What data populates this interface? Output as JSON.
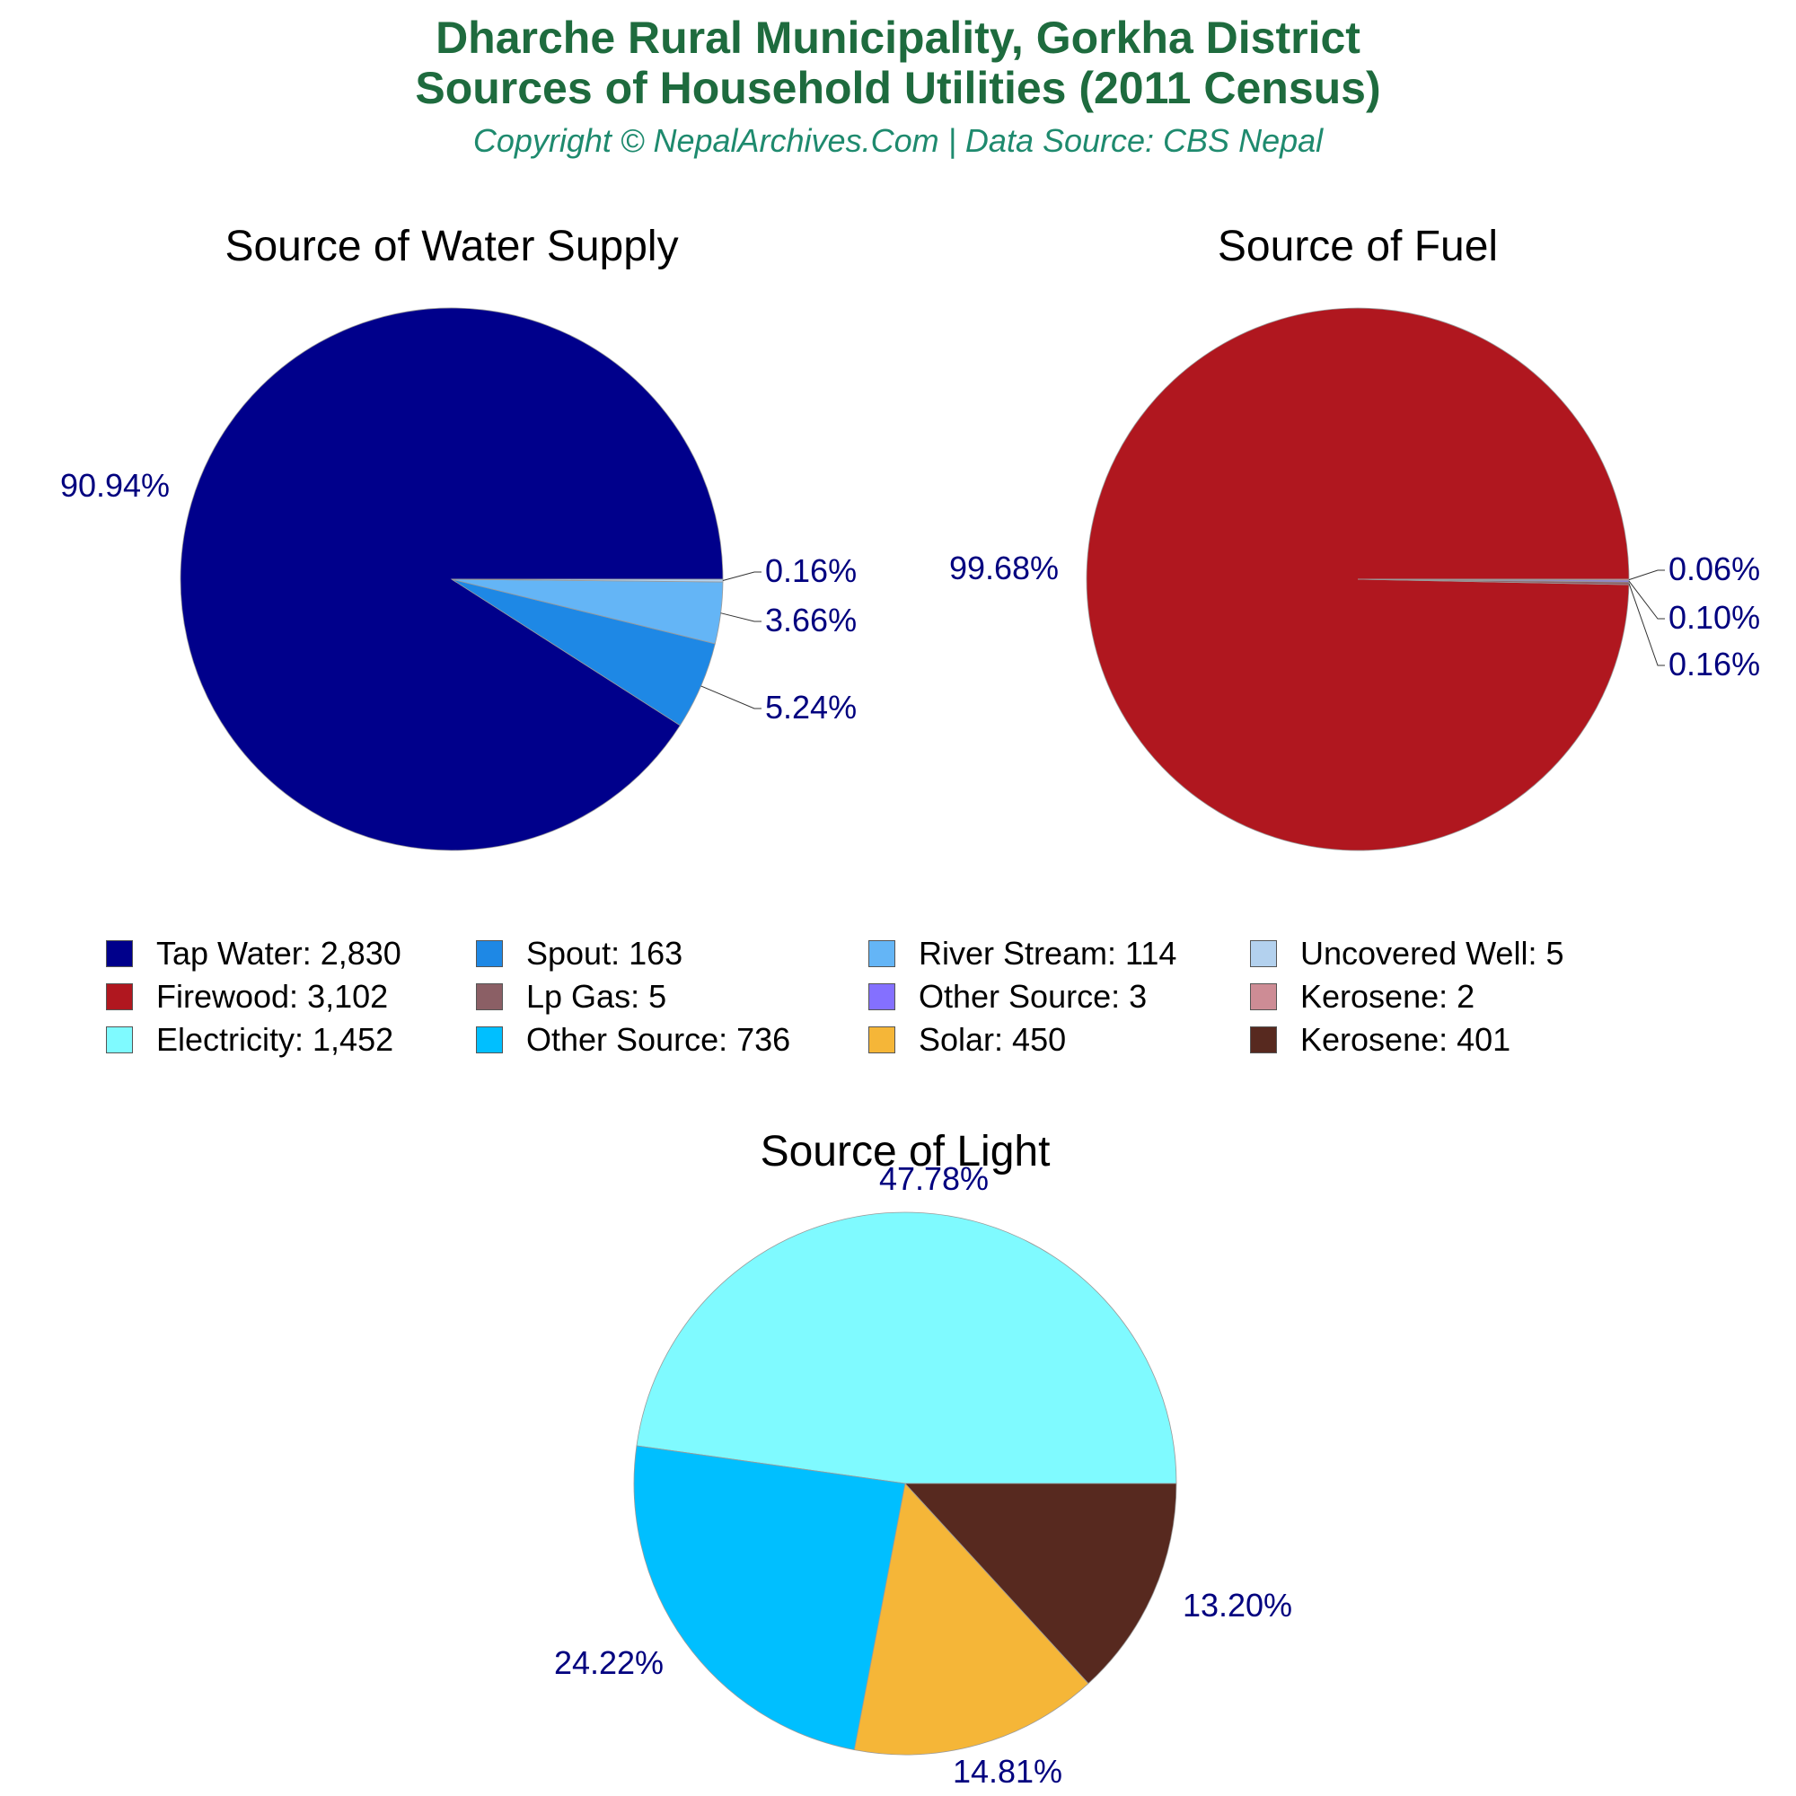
{
  "header": {
    "title_line1": "Dharche Rural Municipality, Gorkha District",
    "title_line2": "Sources of Household Utilities (2011 Census)",
    "subtitle": "Copyright © NepalArchives.Com | Data Source: CBS Nepal"
  },
  "legend": [
    {
      "label": "Tap Water: 2,830",
      "color": "#00008b"
    },
    {
      "label": "Spout: 163",
      "color": "#1e88e5"
    },
    {
      "label": "River Stream: 114",
      "color": "#64b5f6"
    },
    {
      "label": "Uncovered Well: 5",
      "color": "#b3d1ee"
    },
    {
      "label": "Firewood: 3,102",
      "color": "#b0171f"
    },
    {
      "label": "Lp Gas: 5",
      "color": "#8b5f65"
    },
    {
      "label": "Other Source: 3",
      "color": "#8470ff"
    },
    {
      "label": "Kerosene: 2",
      "color": "#cd8c95"
    },
    {
      "label": "Electricity: 1,452",
      "color": "#7ffaff"
    },
    {
      "label": "Other Source: 736",
      "color": "#00bfff"
    },
    {
      "label": "Solar: 450",
      "color": "#f5b638"
    },
    {
      "label": "Kerosene: 401",
      "color": "#57291f"
    }
  ],
  "chart_data": [
    {
      "type": "pie",
      "title": "Source of Water Supply",
      "slices": [
        {
          "name": "Tap Water",
          "value": 2830,
          "label": "90.94%",
          "color": "#00008b"
        },
        {
          "name": "Spout",
          "value": 163,
          "label": "5.24%",
          "color": "#1e88e5"
        },
        {
          "name": "River Stream",
          "value": 114,
          "label": "3.66%",
          "color": "#64b5f6"
        },
        {
          "name": "Uncovered Well",
          "value": 5,
          "label": "0.16%",
          "color": "#b3d1ee"
        }
      ]
    },
    {
      "type": "pie",
      "title": "Source of Fuel",
      "slices": [
        {
          "name": "Firewood",
          "value": 3102,
          "label": "99.68%",
          "color": "#b0171f"
        },
        {
          "name": "Lp Gas",
          "value": 5,
          "label": "0.16%",
          "color": "#8b5f65"
        },
        {
          "name": "Other Source",
          "value": 3,
          "label": "0.10%",
          "color": "#8470ff"
        },
        {
          "name": "Kerosene",
          "value": 2,
          "label": "0.06%",
          "color": "#cd8c95"
        }
      ]
    },
    {
      "type": "pie",
      "title": "Source of Light",
      "slices": [
        {
          "name": "Electricity",
          "value": 1452,
          "label": "47.78%",
          "color": "#7ffaff"
        },
        {
          "name": "Other Source",
          "value": 736,
          "label": "24.22%",
          "color": "#00bfff"
        },
        {
          "name": "Solar",
          "value": 450,
          "label": "14.81%",
          "color": "#f5b638"
        },
        {
          "name": "Kerosene",
          "value": 401,
          "label": "13.20%",
          "color": "#57291f"
        }
      ]
    }
  ],
  "colors": {
    "label_text": "#00007f",
    "title_green": "#1e6b3e",
    "subtitle_green": "#1e8a6e"
  }
}
